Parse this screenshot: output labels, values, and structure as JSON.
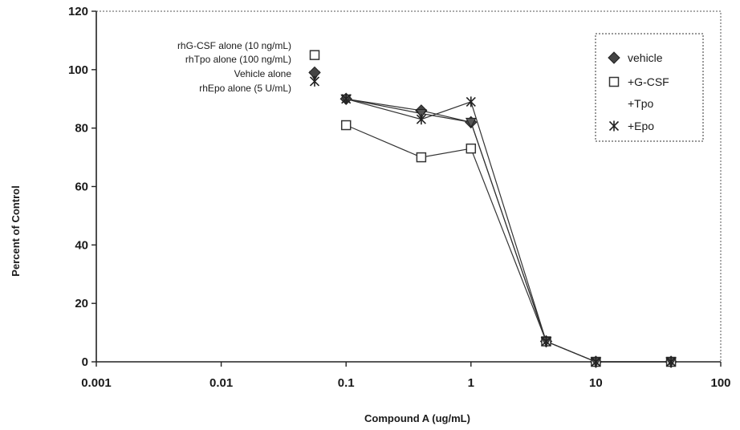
{
  "chart_data": {
    "type": "line",
    "xlabel": "Compound A (ug/mL)",
    "ylabel": "Percent of Control",
    "xscale": "log",
    "xlim": [
      0.001,
      100
    ],
    "ylim": [
      0,
      120
    ],
    "x_ticks": [
      "0.001",
      "0.01",
      "0.1",
      "1",
      "10",
      "100"
    ],
    "y_ticks": [
      "0",
      "20",
      "40",
      "60",
      "80",
      "100",
      "120"
    ],
    "grid": false,
    "legend_position": "top-right",
    "legend": [
      "vehicle",
      "+G-CSF",
      "+Tpo",
      "+Epo"
    ],
    "series": [
      {
        "name": "vehicle",
        "marker": "diamond",
        "x": [
          0.1,
          0.4,
          1,
          4,
          10,
          40
        ],
        "y": [
          90,
          86,
          82,
          7,
          0,
          0
        ]
      },
      {
        "name": "+G-CSF",
        "marker": "square",
        "x": [
          0.1,
          0.4,
          1,
          4,
          10,
          40
        ],
        "y": [
          81,
          70,
          73,
          7,
          0,
          0
        ]
      },
      {
        "name": "+Tpo",
        "marker": "triangle",
        "x": [
          0.1,
          0.4,
          1,
          4,
          10,
          40
        ],
        "y": [
          90,
          85,
          82,
          7,
          0,
          0
        ]
      },
      {
        "name": "+Epo",
        "marker": "asterisk",
        "x": [
          0.1,
          0.4,
          1,
          4,
          10,
          40
        ],
        "y": [
          90,
          83,
          89,
          7,
          0,
          0
        ]
      }
    ],
    "annotations": [
      {
        "text": "rhG-CSF alone (10 ng/mL)",
        "marker": "square",
        "y": 105
      },
      {
        "text": "rhTpo alone (100 ng/mL)",
        "marker": "triangle",
        "y": 98
      },
      {
        "text": "Vehicle alone",
        "marker": "diamond",
        "y": 99
      },
      {
        "text": "rhEpo alone (5 U/mL)",
        "marker": "asterisk",
        "y": 96
      }
    ]
  }
}
